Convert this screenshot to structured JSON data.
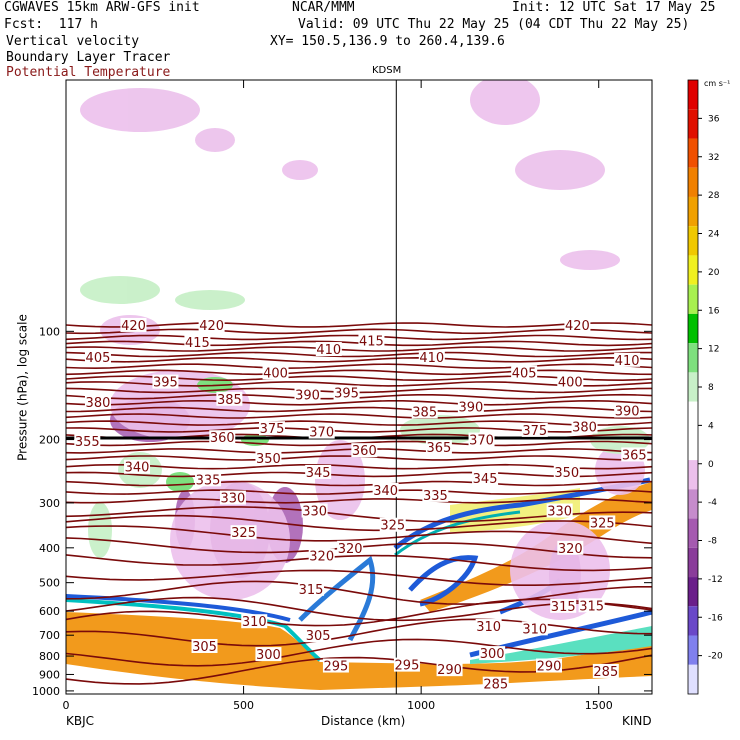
{
  "header": {
    "model": "CGWAVES 15km ARW-GFS init",
    "org": "NCAR/MMM",
    "init": "Init: 12 UTC Sat 17 May 25",
    "fcst": "Fcst:  117 h",
    "valid": "Valid: 09 UTC Thu 22 May 25 (04 CDT Thu 22 May 25)",
    "fields": [
      "Vertical velocity",
      "Boundary Layer Tracer",
      "Potential Temperature"
    ],
    "xy": "XY= 150.5,136.9 to 260.4,139.6"
  },
  "colors": {
    "theta": "#7a0a0a",
    "theta_label": "#7a0a0a",
    "tracer_bg": "#f29a1c",
    "bar": "#222222"
  },
  "chart_data": {
    "type": "cross-section",
    "station_marker": "KDSM",
    "xlabel": "Distance (km)",
    "ylabel": "Pressure (hPa), log scale",
    "xlim": [
      0,
      1650
    ],
    "ylim": [
      1020,
      20
    ],
    "x_ticks": [
      0,
      500,
      1000,
      1500
    ],
    "y_ticks": [
      100,
      200,
      300,
      400,
      500,
      600,
      700,
      800,
      900,
      1000
    ],
    "endpoints": {
      "left": "KBJC",
      "right": "KIND"
    },
    "marker_x": 930,
    "colorbar": {
      "unit": "cm s⁻¹",
      "ticks": [
        36,
        32,
        28,
        24,
        20,
        16,
        12,
        8,
        4,
        0,
        -4,
        -8,
        -12,
        -16,
        -20
      ],
      "colors": [
        "#e0e0ff",
        "#8080ee",
        "#6a48c8",
        "#6a1e8a",
        "#8a3c9a",
        "#a55ab0",
        "#c68ccc",
        "#ecc0ec",
        "#ffffff",
        "#ffffff",
        "#c8f0c8",
        "#7ee07e",
        "#00c000",
        "#a8f050",
        "#f0f020",
        "#f0c800",
        "#f0a000",
        "#f08000",
        "#f05000",
        "#e01000",
        "#e00000"
      ]
    },
    "theta_labels": [
      {
        "v": "420",
        "x": 410,
        "p": 96
      },
      {
        "v": "405",
        "x": 90,
        "p": 118
      },
      {
        "v": "420",
        "x": 190,
        "p": 96
      },
      {
        "v": "415",
        "x": 370,
        "p": 107
      },
      {
        "v": "410",
        "x": 740,
        "p": 112
      },
      {
        "v": "415",
        "x": 860,
        "p": 106
      },
      {
        "v": "410",
        "x": 1030,
        "p": 118
      },
      {
        "v": "420",
        "x": 1440,
        "p": 96
      },
      {
        "v": "410",
        "x": 1580,
        "p": 120
      },
      {
        "v": "395",
        "x": 280,
        "p": 138
      },
      {
        "v": "400",
        "x": 590,
        "p": 130
      },
      {
        "v": "405",
        "x": 1290,
        "p": 130
      },
      {
        "v": "400",
        "x": 1420,
        "p": 138
      },
      {
        "v": "380",
        "x": 90,
        "p": 157
      },
      {
        "v": "385",
        "x": 460,
        "p": 154
      },
      {
        "v": "390",
        "x": 680,
        "p": 150
      },
      {
        "v": "395",
        "x": 790,
        "p": 148
      },
      {
        "v": "385",
        "x": 1010,
        "p": 167
      },
      {
        "v": "390",
        "x": 1140,
        "p": 162
      },
      {
        "v": "390",
        "x": 1580,
        "p": 166
      },
      {
        "v": "355",
        "x": 60,
        "p": 202
      },
      {
        "v": "360",
        "x": 440,
        "p": 197
      },
      {
        "v": "370",
        "x": 720,
        "p": 190
      },
      {
        "v": "375",
        "x": 580,
        "p": 186
      },
      {
        "v": "360",
        "x": 840,
        "p": 214
      },
      {
        "v": "365",
        "x": 1050,
        "p": 210
      },
      {
        "v": "370",
        "x": 1170,
        "p": 200
      },
      {
        "v": "375",
        "x": 1320,
        "p": 188
      },
      {
        "v": "380",
        "x": 1460,
        "p": 184
      },
      {
        "v": "365",
        "x": 1600,
        "p": 220
      },
      {
        "v": "340",
        "x": 200,
        "p": 238
      },
      {
        "v": "335",
        "x": 400,
        "p": 258
      },
      {
        "v": "350",
        "x": 570,
        "p": 225
      },
      {
        "v": "345",
        "x": 710,
        "p": 246
      },
      {
        "v": "340",
        "x": 900,
        "p": 276
      },
      {
        "v": "335",
        "x": 1040,
        "p": 285
      },
      {
        "v": "345",
        "x": 1180,
        "p": 256
      },
      {
        "v": "350",
        "x": 1410,
        "p": 246
      },
      {
        "v": "330",
        "x": 470,
        "p": 290
      },
      {
        "v": "330",
        "x": 700,
        "p": 315
      },
      {
        "v": "330",
        "x": 1390,
        "p": 315
      },
      {
        "v": "325",
        "x": 500,
        "p": 362
      },
      {
        "v": "325",
        "x": 920,
        "p": 345
      },
      {
        "v": "325",
        "x": 1510,
        "p": 340
      },
      {
        "v": "320",
        "x": 720,
        "p": 420
      },
      {
        "v": "320",
        "x": 800,
        "p": 400
      },
      {
        "v": "320",
        "x": 1420,
        "p": 400
      },
      {
        "v": "315",
        "x": 690,
        "p": 520
      },
      {
        "v": "315",
        "x": 1400,
        "p": 580
      },
      {
        "v": "315",
        "x": 1480,
        "p": 578
      },
      {
        "v": "310",
        "x": 530,
        "p": 640
      },
      {
        "v": "310",
        "x": 1190,
        "p": 660
      },
      {
        "v": "310",
        "x": 1320,
        "p": 670
      },
      {
        "v": "305",
        "x": 390,
        "p": 750
      },
      {
        "v": "305",
        "x": 710,
        "p": 700
      },
      {
        "v": "300",
        "x": 570,
        "p": 790
      },
      {
        "v": "300",
        "x": 1200,
        "p": 785
      },
      {
        "v": "295",
        "x": 760,
        "p": 850
      },
      {
        "v": "295",
        "x": 960,
        "p": 845
      },
      {
        "v": "290",
        "x": 1080,
        "p": 870
      },
      {
        "v": "290",
        "x": 1360,
        "p": 850
      },
      {
        "v": "285",
        "x": 1210,
        "p": 955
      },
      {
        "v": "285",
        "x": 1520,
        "p": 880
      }
    ]
  }
}
